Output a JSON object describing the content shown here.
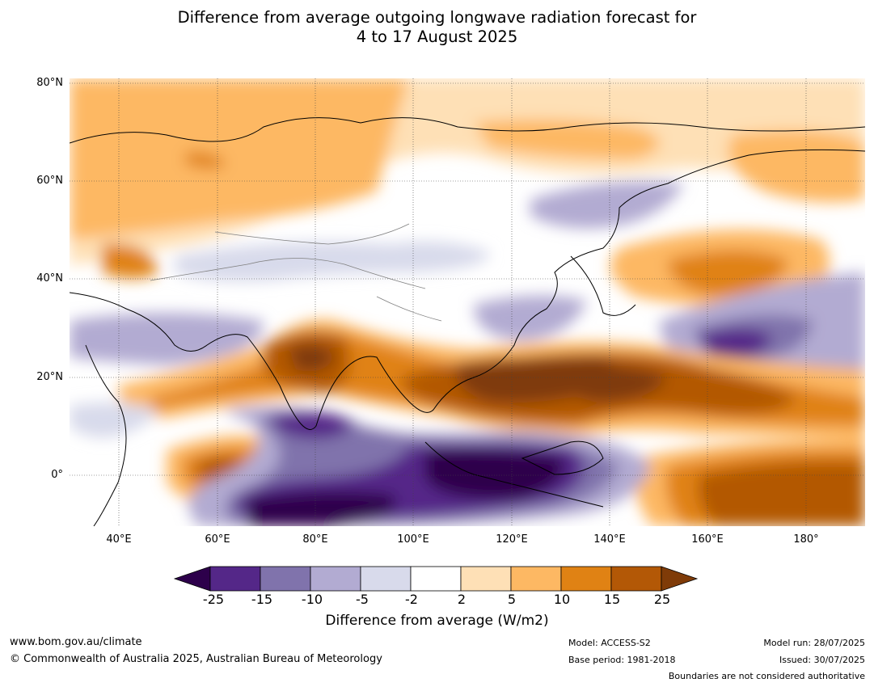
{
  "title_line1": "Difference from average outgoing longwave radiation forecast for",
  "title_line2": "4 to 17 August 2025",
  "lat_labels": [
    "80°N",
    "60°N",
    "40°N",
    "20°N",
    "0°"
  ],
  "lon_labels": [
    "40°E",
    "60°E",
    "80°E",
    "100°E",
    "120°E",
    "140°E",
    "160°E",
    "180°"
  ],
  "colorbar": {
    "ticks": [
      "-25",
      "-15",
      "-10",
      "-5",
      "-2",
      "2",
      "5",
      "10",
      "15",
      "25"
    ],
    "title": "Difference from average (W/m2)",
    "colors": [
      "#2d004b",
      "#542788",
      "#8073ac",
      "#b2abd2",
      "#d8daeb",
      "#ffffff",
      "#fee0b6",
      "#fdb863",
      "#e08214",
      "#b35806",
      "#7f3b08"
    ]
  },
  "footer": {
    "website": "www.bom.gov.au/climate",
    "copyright": "© Commonwealth of Australia 2025, Australian Bureau of Meteorology",
    "model": "Model: ACCESS-S2",
    "base_period": "Base period: 1981-2018",
    "model_run": "Model run: 28/07/2025",
    "issued": "Issued: 30/07/2025",
    "disclaimer": "Boundaries are not considered authoritative"
  }
}
